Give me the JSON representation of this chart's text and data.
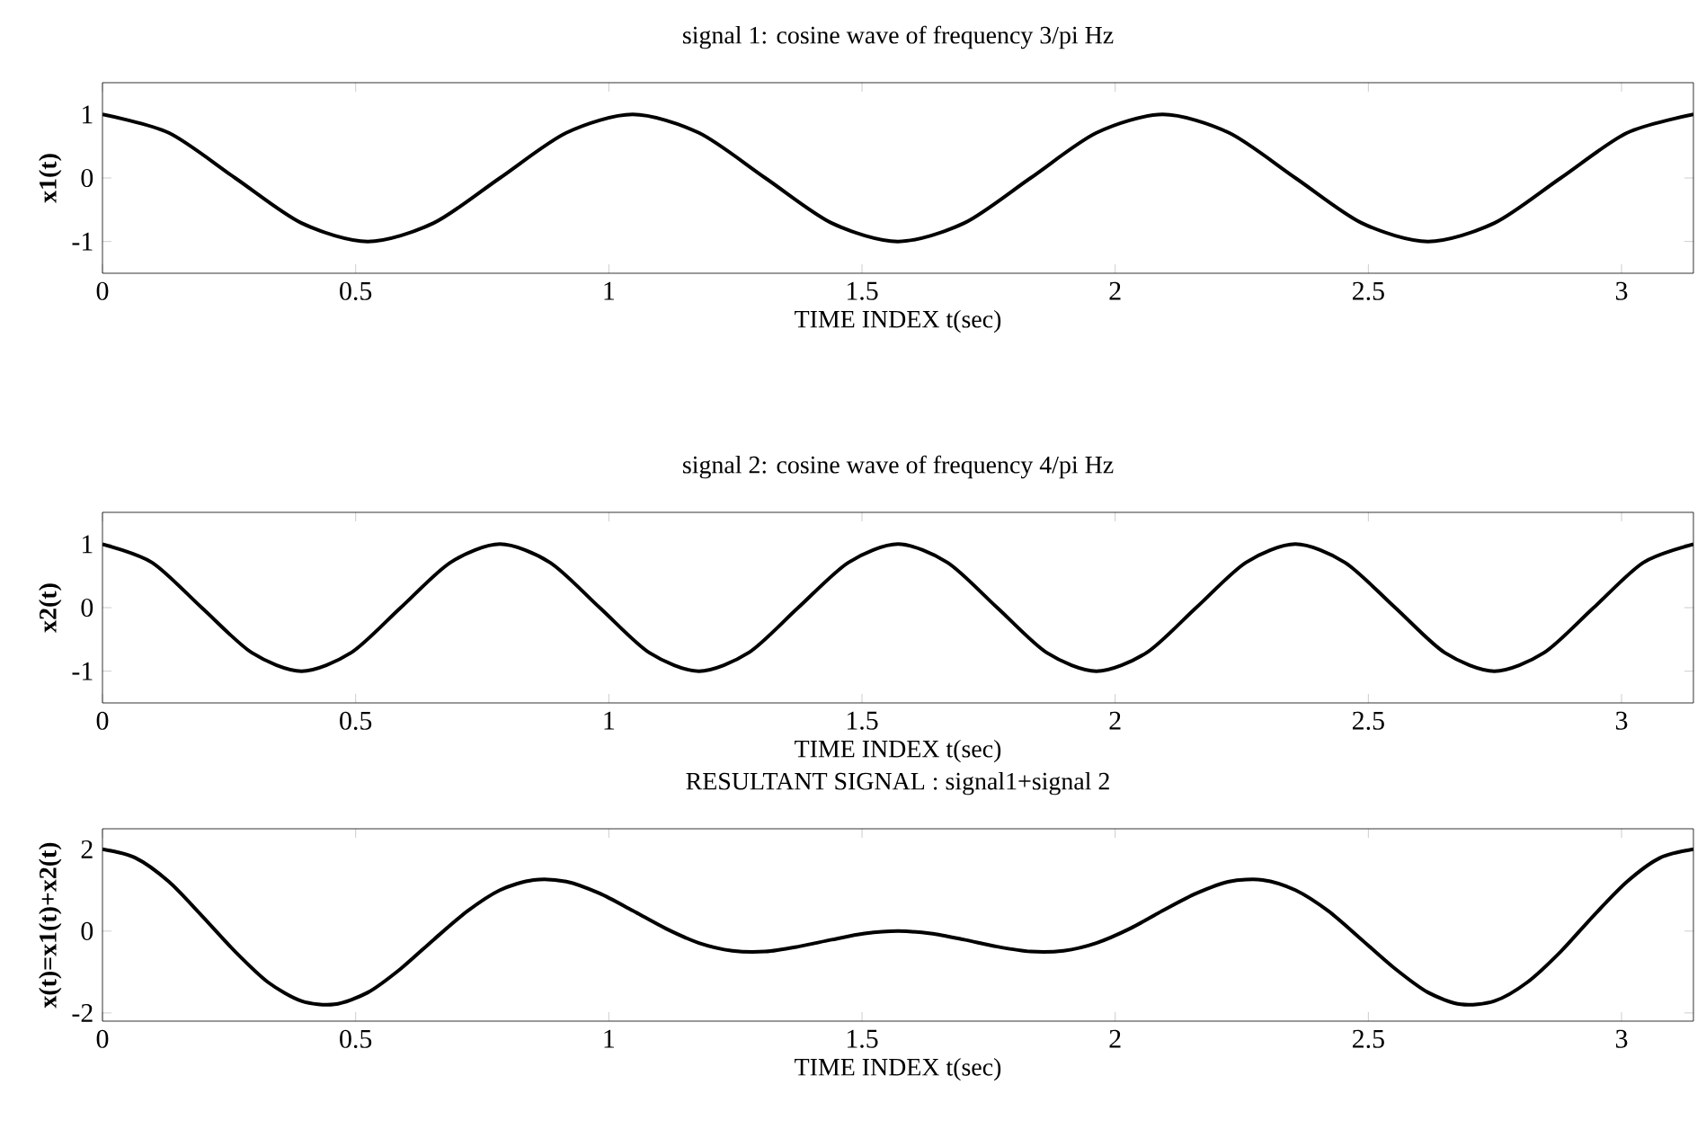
{
  "chart_data": [
    {
      "type": "line",
      "title": "signal 1: cosine wave of frequency 3/pi Hz",
      "xlabel": "TIME INDEX t(sec)",
      "ylabel": "x1(t)",
      "xlim": [
        0,
        3.142
      ],
      "ylim": [
        -1.5,
        1.5
      ],
      "xticks": [
        0,
        0.5,
        1,
        1.5,
        2,
        2.5,
        3
      ],
      "yticks": [
        -1,
        0,
        1
      ],
      "series": [
        {
          "color": "#000000",
          "x": [
            0,
            0.131,
            0.262,
            0.393,
            0.524,
            0.654,
            0.785,
            0.916,
            1.047,
            1.178,
            1.309,
            1.44,
            1.571,
            1.702,
            1.833,
            1.963,
            2.094,
            2.225,
            2.356,
            2.487,
            2.618,
            2.749,
            2.88,
            3.011,
            3.142
          ],
          "values": [
            1,
            0.71,
            0,
            -0.71,
            -1,
            -0.71,
            0,
            0.71,
            1,
            0.71,
            0,
            -0.71,
            -1,
            -0.71,
            0,
            0.71,
            1,
            0.71,
            0,
            -0.71,
            -1,
            -0.71,
            0,
            0.71,
            1
          ]
        }
      ]
    },
    {
      "type": "line",
      "title": "signal 2: cosine wave of frequency 4/pi Hz",
      "xlabel": "TIME INDEX t(sec)",
      "ylabel": "x2(t)",
      "xlim": [
        0,
        3.142
      ],
      "ylim": [
        -1.5,
        1.5
      ],
      "xticks": [
        0,
        0.5,
        1,
        1.5,
        2,
        2.5,
        3
      ],
      "yticks": [
        -1,
        0,
        1
      ],
      "series": [
        {
          "color": "#000000",
          "x": [
            0,
            0.098,
            0.196,
            0.295,
            0.393,
            0.491,
            0.589,
            0.687,
            0.785,
            0.884,
            0.982,
            1.08,
            1.178,
            1.276,
            1.374,
            1.473,
            1.571,
            1.669,
            1.767,
            1.865,
            1.963,
            2.062,
            2.16,
            2.258,
            2.356,
            2.454,
            2.553,
            2.651,
            2.749,
            2.847,
            2.945,
            3.043,
            3.142
          ],
          "values": [
            1,
            0.71,
            0,
            -0.71,
            -1,
            -0.71,
            0,
            0.71,
            1,
            0.71,
            0,
            -0.71,
            -1,
            -0.71,
            0,
            0.71,
            1,
            0.71,
            0,
            -0.71,
            -1,
            -0.71,
            0,
            0.71,
            1,
            0.71,
            0,
            -0.71,
            -1,
            -0.71,
            0,
            0.71,
            1
          ]
        }
      ]
    },
    {
      "type": "line",
      "title": "RESULTANT SIGNAL : signal1+signal 2",
      "xlabel": "TIME INDEX t(sec)",
      "ylabel": "x(t)=x1(t)+x2(t)",
      "xlim": [
        0,
        3.142
      ],
      "ylim": [
        -2.2,
        2.5
      ],
      "xticks": [
        0,
        0.5,
        1,
        1.5,
        2,
        2.5,
        3
      ],
      "yticks": [
        -2,
        0,
        2
      ],
      "series": [
        {
          "color": "#000000",
          "x": [
            0,
            0.065,
            0.131,
            0.196,
            0.262,
            0.327,
            0.393,
            0.458,
            0.524,
            0.589,
            0.654,
            0.72,
            0.785,
            0.851,
            0.916,
            0.982,
            1.047,
            1.113,
            1.178,
            1.244,
            1.309,
            1.374,
            1.44,
            1.505,
            1.571,
            1.636,
            1.702,
            1.767,
            1.833,
            1.898,
            1.963,
            2.029,
            2.094,
            2.16,
            2.225,
            2.291,
            2.356,
            2.422,
            2.487,
            2.553,
            2.618,
            2.683,
            2.749,
            2.814,
            2.88,
            2.945,
            3.011,
            3.076,
            3.142
          ],
          "values": [
            2,
            1.79,
            1.21,
            0.38,
            -0.5,
            -1.25,
            -1.71,
            -1.79,
            -1.5,
            -0.92,
            -0.21,
            0.48,
            1,
            1.25,
            1.21,
            0.92,
            0.5,
            0.06,
            -0.29,
            -0.48,
            -0.5,
            -0.38,
            -0.21,
            -0.06,
            0,
            -0.06,
            -0.21,
            -0.38,
            -0.5,
            -0.48,
            -0.29,
            0.06,
            0.5,
            0.92,
            1.21,
            1.25,
            1,
            0.48,
            -0.21,
            -0.92,
            -1.5,
            -1.79,
            -1.71,
            -1.25,
            -0.5,
            0.38,
            1.21,
            1.79,
            2
          ]
        }
      ]
    }
  ]
}
